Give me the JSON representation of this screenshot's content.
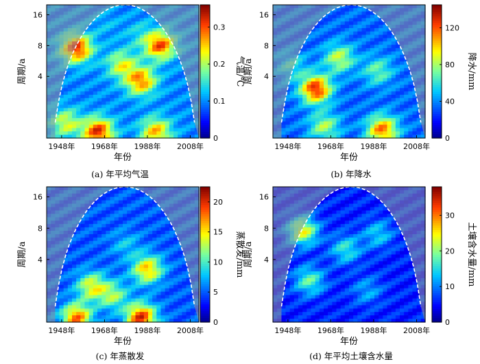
{
  "chart_data": [
    {
      "type": "heatmap",
      "caption": "(a) 年平均气温",
      "xlabel": "年份",
      "ylabel": "周期/a",
      "colorbar_label": "气温/℃",
      "x_ticks": [
        "1948年",
        "1968年",
        "1988年",
        "2008年"
      ],
      "y_ticks": [
        "4",
        "8",
        "16"
      ],
      "colorbar_ticks": [
        "0",
        "0.1",
        "0.2",
        "0.3"
      ],
      "colorbar_range": [
        0,
        0.36
      ],
      "blobs": [
        {
          "x": 1955,
          "y": 7.5,
          "v": 0.32
        },
        {
          "x": 1994,
          "y": 8.0,
          "v": 0.3
        },
        {
          "x": 1985,
          "y": 3.6,
          "v": 0.28
        },
        {
          "x": 1965,
          "y": 1.15,
          "v": 0.32
        },
        {
          "x": 1992,
          "y": 1.15,
          "v": 0.26
        },
        {
          "x": 1976,
          "y": 5.2,
          "v": 0.22
        },
        {
          "x": 1950,
          "y": 1.4,
          "v": 0.22
        },
        {
          "x": 1968,
          "y": 13.0,
          "v": 0.12
        },
        {
          "x": 1985,
          "y": 10.0,
          "v": 0.14
        }
      ],
      "base": 0.1
    },
    {
      "type": "heatmap",
      "caption": "(b) 年降水",
      "xlabel": "年份",
      "ylabel": "周期/a",
      "colorbar_label": "降水/mm",
      "x_ticks": [
        "1948年",
        "1968年",
        "1988年",
        "2008年"
      ],
      "y_ticks": [
        "4",
        "8",
        "16"
      ],
      "colorbar_ticks": [
        "0",
        "40",
        "80",
        "120"
      ],
      "colorbar_range": [
        0,
        145
      ],
      "blobs": [
        {
          "x": 1961,
          "y": 3.0,
          "v": 130
        },
        {
          "x": 1992,
          "y": 1.2,
          "v": 115
        },
        {
          "x": 1972,
          "y": 6.0,
          "v": 85
        },
        {
          "x": 1990,
          "y": 4.5,
          "v": 70
        },
        {
          "x": 1965,
          "y": 1.3,
          "v": 80
        },
        {
          "x": 1950,
          "y": 5.0,
          "v": 60
        }
      ],
      "base": 35
    },
    {
      "type": "heatmap",
      "caption": "(c) 年蒸散发",
      "xlabel": "年份",
      "ylabel": "周期/a",
      "colorbar_label": "蒸散发/mm",
      "x_ticks": [
        "1948年",
        "1968年",
        "1988年",
        "2008年"
      ],
      "y_ticks": [
        "4",
        "8",
        "16"
      ],
      "colorbar_ticks": [
        "0",
        "5",
        "10",
        "15",
        "20"
      ],
      "colorbar_range": [
        0,
        22.5
      ],
      "blobs": [
        {
          "x": 1985,
          "y": 1.1,
          "v": 20
        },
        {
          "x": 1955,
          "y": 1.1,
          "v": 18
        },
        {
          "x": 1988,
          "y": 3.2,
          "v": 16
        },
        {
          "x": 1962,
          "y": 2.2,
          "v": 14
        },
        {
          "x": 1972,
          "y": 1.8,
          "v": 12
        },
        {
          "x": 1978,
          "y": 5.5,
          "v": 8
        }
      ],
      "base": 5
    },
    {
      "type": "heatmap",
      "caption": "(d) 年平均土壤含水量",
      "xlabel": "年份",
      "ylabel": "周期/a",
      "colorbar_label": "土壤含水量/mm",
      "x_ticks": [
        "1948年",
        "1968年",
        "1988年",
        "2008年"
      ],
      "y_ticks": [
        "4",
        "8",
        "16"
      ],
      "colorbar_ticks": [
        "0",
        "10",
        "20",
        "30"
      ],
      "colorbar_range": [
        0,
        38
      ],
      "blobs": [
        {
          "x": 1955,
          "y": 7.5,
          "v": 24
        },
        {
          "x": 1958,
          "y": 2.5,
          "v": 18
        },
        {
          "x": 1975,
          "y": 5.0,
          "v": 16
        },
        {
          "x": 1990,
          "y": 7.0,
          "v": 14
        },
        {
          "x": 1985,
          "y": 2.0,
          "v": 12
        }
      ],
      "base": 6
    }
  ]
}
